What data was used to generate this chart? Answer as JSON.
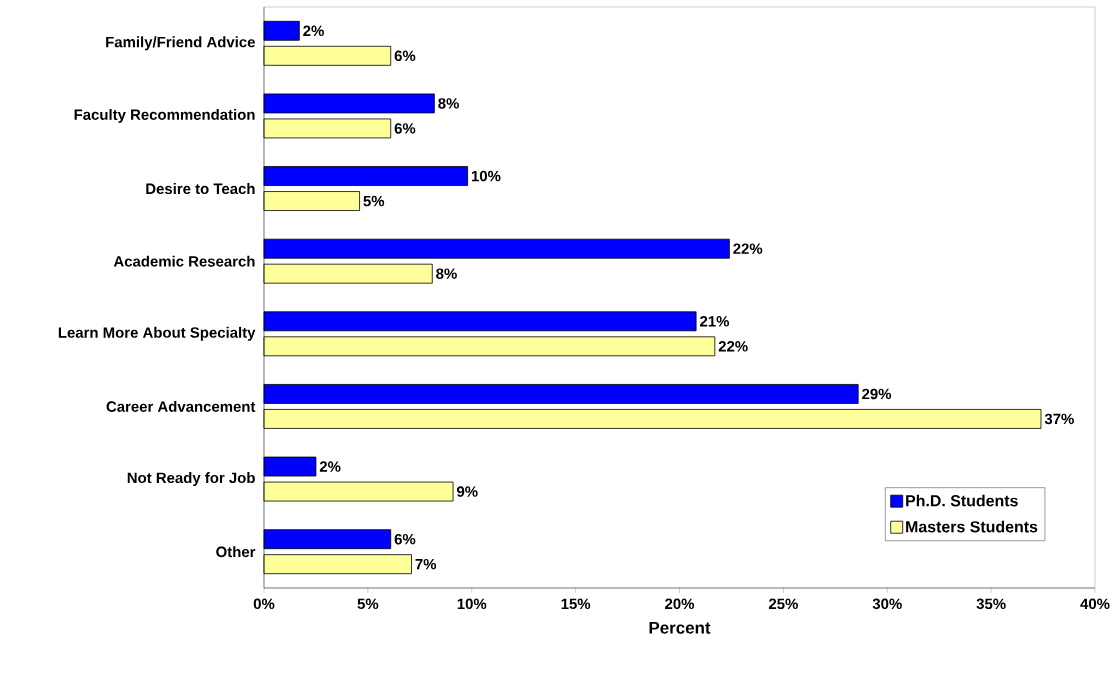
{
  "chart_data": {
    "type": "bar",
    "orientation": "horizontal",
    "xlabel": "Percent",
    "categories": [
      "Family/Friend Advice",
      "Faculty Recommendation",
      "Desire to Teach",
      "Academic Research",
      "Learn More About Specialty",
      "Career Advancement",
      "Not Ready for Job",
      "Other"
    ],
    "series": [
      {
        "name": "Ph.D. Students",
        "color": "#0000ff",
        "values": [
          1.7,
          8.2,
          9.8,
          22.4,
          20.8,
          28.6,
          2.5,
          6.1
        ],
        "value_labels": [
          "2%",
          "8%",
          "10%",
          "22%",
          "21%",
          "29%",
          "2%",
          "6%"
        ]
      },
      {
        "name": "Masters Students",
        "color": "#ffff99",
        "values": [
          6.1,
          6.1,
          4.6,
          8.1,
          21.7,
          37.4,
          9.1,
          7.1
        ],
        "value_labels": [
          "6%",
          "6%",
          "5%",
          "8%",
          "22%",
          "37%",
          "9%",
          "7%"
        ]
      }
    ],
    "xlim": [
      0,
      40
    ],
    "xticks": [
      {
        "value": 0,
        "label": "0%"
      },
      {
        "value": 5,
        "label": "5%"
      },
      {
        "value": 10,
        "label": "10%"
      },
      {
        "value": 15,
        "label": "15%"
      },
      {
        "value": 20,
        "label": "20%"
      },
      {
        "value": 25,
        "label": "25%"
      },
      {
        "value": 30,
        "label": "30%"
      },
      {
        "value": 35,
        "label": "35%"
      },
      {
        "value": 40,
        "label": "40%"
      }
    ],
    "legend": "bottom right",
    "grid": false
  }
}
